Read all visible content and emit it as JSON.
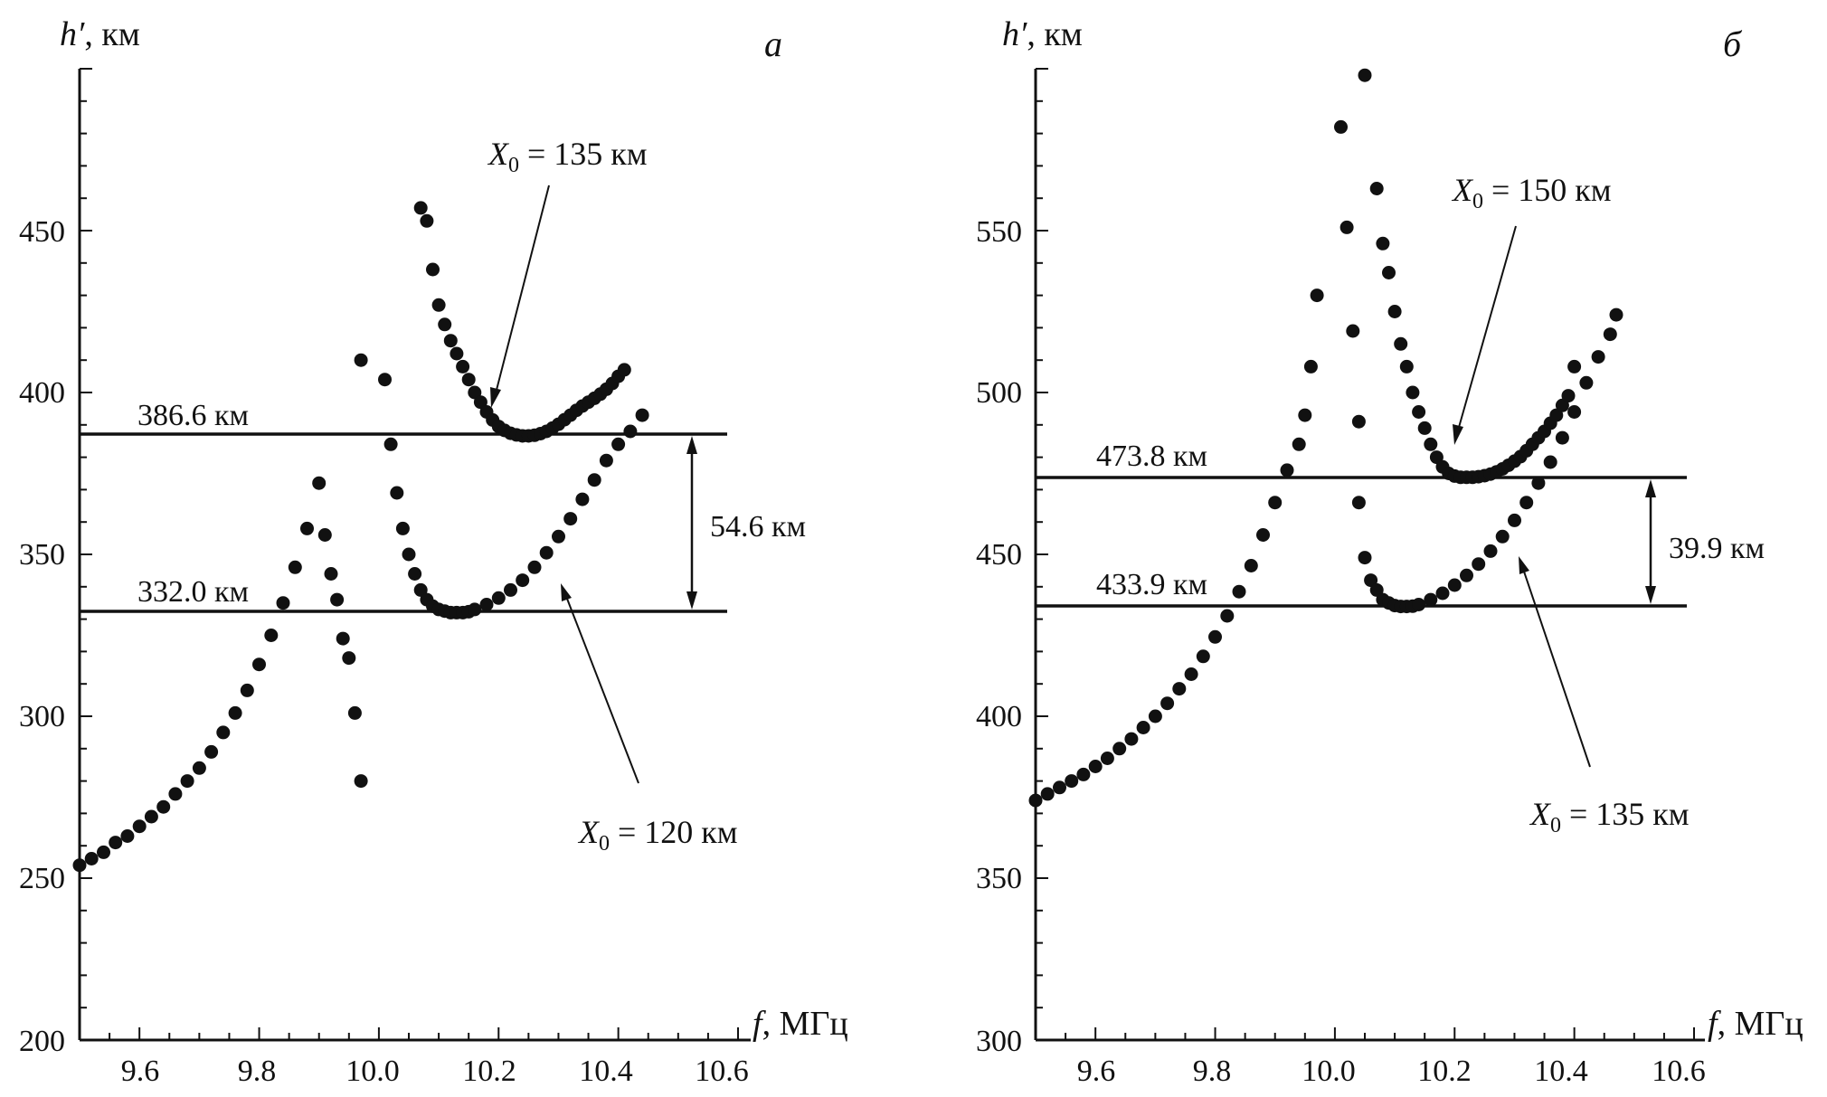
{
  "figure": {
    "panels": [
      {
        "letter": "а",
        "ylabel_h": "h′",
        "ylabel_unit": ", км",
        "xlabel_f": "f",
        "xlabel_unit": ", МГц",
        "ylim": [
          200,
          500
        ],
        "xlim": [
          9.5,
          10.6
        ],
        "xticks": [
          "9.6",
          "9.8",
          "10.0",
          "10.2",
          "10.4",
          "10.6"
        ],
        "yticks": [
          "200",
          "250",
          "300",
          "350",
          "400",
          "450"
        ],
        "hlines": [
          {
            "label": "386.6 км",
            "value": 386.6
          },
          {
            "label": "332.0 км",
            "value": 332.0
          }
        ],
        "difference": {
          "label": "54.6 км"
        },
        "series_labels": [
          {
            "prefix": "X",
            "sub": "0",
            "suffix": " = 135 км"
          },
          {
            "prefix": "X",
            "sub": "0",
            "suffix": " = 120 км"
          }
        ]
      },
      {
        "letter": "б",
        "ylabel_h": "h′",
        "ylabel_unit": ", км",
        "xlabel_f": "f",
        "xlabel_unit": ", МГц",
        "ylim": [
          300,
          600
        ],
        "xlim": [
          9.5,
          10.6
        ],
        "xticks": [
          "9.6",
          "9.8",
          "10.0",
          "10.2",
          "10.4",
          "10.6"
        ],
        "yticks": [
          "300",
          "350",
          "400",
          "450",
          "500",
          "550"
        ],
        "hlines": [
          {
            "label": "473.8 км",
            "value": 473.8
          },
          {
            "label": "433.9 км",
            "value": 433.9
          }
        ],
        "difference": {
          "label": "39.9 км"
        },
        "series_labels": [
          {
            "prefix": "X",
            "sub": "0",
            "suffix": " = 150 км"
          },
          {
            "prefix": "X",
            "sub": "0",
            "suffix": " = 135 км"
          }
        ]
      }
    ]
  },
  "chart_data": [
    {
      "type": "scatter",
      "panel": "а",
      "xlim": [
        9.5,
        10.6
      ],
      "ylim": [
        200,
        500
      ],
      "grid": false,
      "series": [
        {
          "name": "X0 = 120 км",
          "x": [
            9.5,
            9.52,
            9.54,
            9.56,
            9.58,
            9.6,
            9.62,
            9.64,
            9.66,
            9.68,
            9.7,
            9.72,
            9.74,
            9.76,
            9.78,
            9.8,
            9.82,
            9.84,
            9.86,
            9.88,
            9.9,
            9.91,
            9.92,
            9.93,
            9.94,
            9.95,
            9.96,
            9.97,
            10.02,
            10.03,
            10.04,
            10.05,
            10.06,
            10.07,
            10.08,
            10.09,
            10.1,
            10.11,
            10.12,
            10.13,
            10.14,
            10.15,
            10.16,
            10.18,
            10.2,
            10.22,
            10.24,
            10.26,
            10.28,
            10.3,
            10.32,
            10.34,
            10.36,
            10.38,
            10.4,
            10.42,
            10.44
          ],
          "y": [
            254,
            256,
            258,
            261,
            263,
            266,
            269,
            272,
            276,
            280,
            284,
            289,
            295,
            301,
            308,
            316,
            325,
            335,
            346,
            358,
            372,
            356,
            344,
            336,
            324,
            318,
            301,
            280,
            384,
            369,
            358,
            350,
            344,
            339,
            336,
            334,
            333,
            332.5,
            332,
            332,
            332,
            332.3,
            333,
            334.5,
            336.5,
            339,
            342,
            346,
            350.5,
            355.5,
            361,
            367,
            373,
            379,
            384,
            388,
            393
          ]
        },
        {
          "name": "X0 = 135 км",
          "x": [
            9.97,
            10.01,
            10.07,
            10.08,
            10.09,
            10.1,
            10.11,
            10.12,
            10.13,
            10.14,
            10.15,
            10.16,
            10.17,
            10.18,
            10.19,
            10.2,
            10.21,
            10.22,
            10.23,
            10.24,
            10.25,
            10.26,
            10.27,
            10.28,
            10.29,
            10.3,
            10.31,
            10.32,
            10.33,
            10.34,
            10.35,
            10.36,
            10.37,
            10.38,
            10.39,
            10.4,
            10.41
          ],
          "y": [
            410,
            404,
            457,
            453,
            438,
            427,
            421,
            416,
            412,
            408,
            404,
            400,
            397,
            394,
            391.5,
            389.5,
            388.3,
            387.4,
            386.9,
            386.6,
            386.6,
            386.8,
            387.3,
            388,
            389,
            390.2,
            391.6,
            393,
            394.5,
            395.8,
            397,
            398.2,
            399.5,
            401,
            402.8,
            405,
            407
          ]
        }
      ],
      "hlines": [
        386.6,
        332.0
      ],
      "difference": 54.6
    },
    {
      "type": "scatter",
      "panel": "б",
      "xlim": [
        9.5,
        10.6
      ],
      "ylim": [
        300,
        600
      ],
      "grid": false,
      "series": [
        {
          "name": "X0 = 135 км",
          "x": [
            9.5,
            9.52,
            9.54,
            9.56,
            9.58,
            9.6,
            9.62,
            9.64,
            9.66,
            9.68,
            9.7,
            9.72,
            9.74,
            9.76,
            9.78,
            9.8,
            9.82,
            9.84,
            9.86,
            9.88,
            9.9,
            9.92,
            9.94,
            9.95,
            9.96,
            9.97,
            10.04,
            10.05,
            10.06,
            10.07,
            10.08,
            10.09,
            10.1,
            10.11,
            10.12,
            10.13,
            10.14,
            10.16,
            10.18,
            10.2,
            10.22,
            10.24,
            10.26,
            10.28,
            10.3,
            10.32,
            10.34,
            10.36,
            10.38,
            10.4,
            10.42,
            10.44,
            10.46,
            10.47
          ],
          "y": [
            374,
            376,
            378,
            380,
            382,
            384.5,
            387,
            390,
            393,
            396.5,
            400,
            404,
            408.5,
            413,
            418.5,
            424.5,
            431,
            438.5,
            446.5,
            456,
            466,
            476,
            484,
            493,
            508,
            530,
            466,
            449,
            442,
            439,
            436,
            435,
            434.2,
            433.9,
            433.9,
            434,
            434.5,
            436,
            438,
            440.5,
            443.5,
            447,
            451,
            455.5,
            460.5,
            466,
            472,
            478.5,
            486,
            494,
            503,
            511,
            518,
            524
          ]
        },
        {
          "name": "X0 = 150 км",
          "x": [
            10.01,
            10.02,
            10.03,
            10.04,
            10.05,
            10.07,
            10.08,
            10.09,
            10.1,
            10.11,
            10.12,
            10.13,
            10.14,
            10.15,
            10.16,
            10.17,
            10.18,
            10.19,
            10.2,
            10.21,
            10.22,
            10.23,
            10.24,
            10.25,
            10.26,
            10.27,
            10.28,
            10.29,
            10.3,
            10.31,
            10.32,
            10.33,
            10.34,
            10.35,
            10.36,
            10.37,
            10.38,
            10.39,
            10.4
          ],
          "y": [
            582,
            551,
            519,
            491,
            598,
            563,
            546,
            537,
            525,
            515,
            508,
            500,
            494,
            489,
            484,
            480,
            477,
            475,
            474.2,
            473.8,
            473.8,
            473.8,
            474,
            474.3,
            474.8,
            475.5,
            476.4,
            477.5,
            478.8,
            480.2,
            482,
            484,
            486,
            488,
            490.5,
            493,
            496,
            499,
            508
          ]
        }
      ],
      "hlines": [
        473.8,
        433.9
      ],
      "difference": 39.9
    }
  ]
}
